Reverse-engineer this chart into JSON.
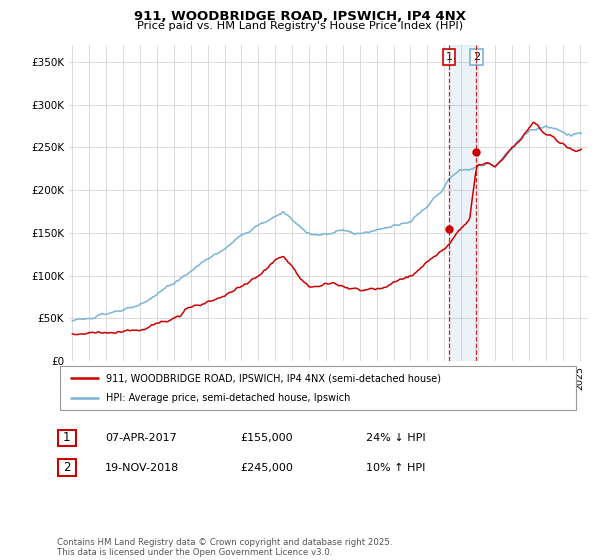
{
  "title": "911, WOODBRIDGE ROAD, IPSWICH, IP4 4NX",
  "subtitle": "Price paid vs. HM Land Registry's House Price Index (HPI)",
  "ylabel_ticks": [
    "£0",
    "£50K",
    "£100K",
    "£150K",
    "£200K",
    "£250K",
    "£300K",
    "£350K"
  ],
  "ytick_vals": [
    0,
    50000,
    100000,
    150000,
    200000,
    250000,
    300000,
    350000
  ],
  "ylim": [
    0,
    370000
  ],
  "xlim_start": 1994.8,
  "xlim_end": 2025.5,
  "hpi_color": "#7ab4d8",
  "price_color": "#cc0000",
  "transaction1_date": 2017.27,
  "transaction1_price": 155000,
  "transaction2_date": 2018.9,
  "transaction2_price": 245000,
  "legend_label1": "911, WOODBRIDGE ROAD, IPSWICH, IP4 4NX (semi-detached house)",
  "legend_label2": "HPI: Average price, semi-detached house, Ipswich",
  "table_row1_num": "1",
  "table_row1_date": "07-APR-2017",
  "table_row1_price": "£155,000",
  "table_row1_hpi": "24% ↓ HPI",
  "table_row2_num": "2",
  "table_row2_date": "19-NOV-2018",
  "table_row2_price": "£245,000",
  "table_row2_hpi": "10% ↑ HPI",
  "footnote": "Contains HM Land Registry data © Crown copyright and database right 2025.\nThis data is licensed under the Open Government Licence v3.0.",
  "background_color": "#ffffff",
  "grid_color": "#cccccc"
}
